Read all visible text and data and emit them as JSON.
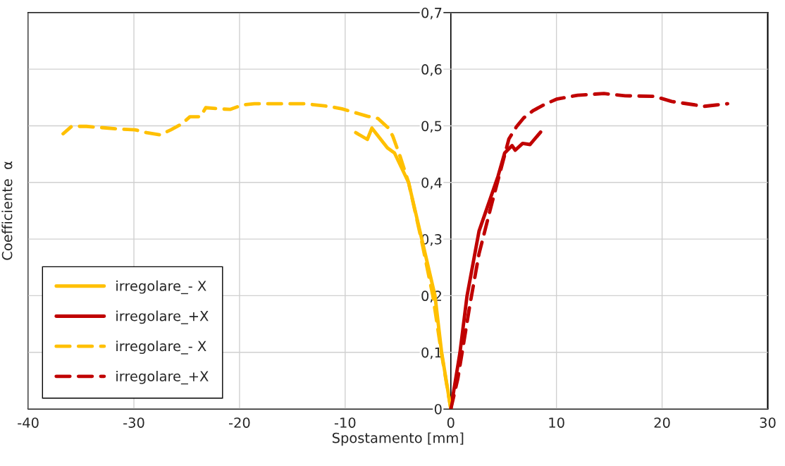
{
  "chart_data": {
    "type": "line",
    "xlabel": "Spostamento [mm]",
    "ylabel": "Coefficiente  α",
    "xlim": [
      -40,
      30
    ],
    "ylim": [
      0,
      0.7
    ],
    "xticks": [
      -40,
      -30,
      -20,
      -10,
      0,
      10,
      20,
      30
    ],
    "yticks": [
      0,
      {
        "value": 0.1,
        "label": "0,1"
      },
      {
        "value": 0.2,
        "label": "0,2"
      },
      {
        "value": 0.3,
        "label": "0,3"
      },
      {
        "value": 0.4,
        "label": "0,4"
      },
      {
        "value": 0.5,
        "label": "0,5"
      },
      {
        "value": 0.6,
        "label": "0,6"
      },
      {
        "value": 0.7,
        "label": "0,7"
      }
    ],
    "grid": true,
    "legend": "bottom left",
    "marker": "none",
    "series": [
      {
        "name": "irregolare_- X",
        "color": "#ffc000",
        "line_style": "solid",
        "x": [
          0,
          -0.87,
          -1.5,
          -4,
          -5.33,
          -6,
          -7.47,
          -7.9,
          -9
        ],
        "values": [
          0,
          0.1,
          0.2,
          0.4,
          0.452,
          0.461,
          0.496,
          0.476,
          0.488
        ]
      },
      {
        "name": "irregolare_+X",
        "color": "#c00000",
        "line_style": "solid",
        "x": [
          0,
          0.87,
          1.53,
          2.67,
          4.47,
          5.1,
          5.8,
          6.1,
          6.8,
          7.5,
          8.5
        ],
        "values": [
          0,
          0.1,
          0.199,
          0.314,
          0.411,
          0.452,
          0.465,
          0.457,
          0.469,
          0.467,
          0.489
        ]
      },
      {
        "name": "irregolare_- X",
        "color": "#ffc000",
        "line_style": "dashed",
        "x": [
          0,
          -0.9,
          -1.7,
          -2.8,
          -4,
          -4.8,
          -5.5,
          -5.9,
          -6.9,
          -7.9,
          -10.3,
          -11.4,
          -13.8,
          -16.2,
          -18.6,
          -19.7,
          -20.9,
          -21.9,
          -23.2,
          -23.7,
          -24.7,
          -25.5,
          -26.5,
          -27.5,
          -28.8,
          -29.9,
          -31.2,
          -34.5,
          -35.9,
          -36.7
        ],
        "values": [
          0,
          0.1,
          0.2,
          0.3,
          0.4,
          0.446,
          0.482,
          0.496,
          0.513,
          0.517,
          0.53,
          0.534,
          0.539,
          0.539,
          0.539,
          0.537,
          0.529,
          0.53,
          0.532,
          0.516,
          0.516,
          0.503,
          0.493,
          0.484,
          0.488,
          0.493,
          0.494,
          0.499,
          0.499,
          0.486
        ]
      },
      {
        "name": "irregolare_+X",
        "color": "#c00000",
        "line_style": "dashed",
        "x": [
          0,
          0.67,
          1.8,
          2.67,
          3.8,
          5.5,
          6.2,
          6.9,
          7.8,
          8.9,
          10,
          12,
          14.5,
          16.5,
          19.3,
          20.9,
          23.1,
          23.8,
          26.2
        ],
        "values": [
          0,
          0.054,
          0.183,
          0.274,
          0.357,
          0.477,
          0.498,
          0.514,
          0.527,
          0.538,
          0.547,
          0.554,
          0.557,
          0.553,
          0.552,
          0.543,
          0.537,
          0.534,
          0.539
        ]
      }
    ]
  }
}
